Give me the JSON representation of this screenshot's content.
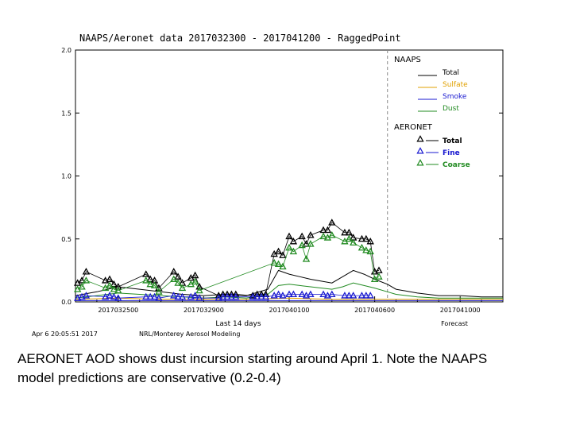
{
  "chart_data": {
    "type": "line",
    "title": "NAAPS/Aeronet data 2017032300 - 2017041200 - RaggedPoint",
    "ylim": [
      0,
      2.0
    ],
    "y_ticks": [
      "0.0",
      "0.5",
      "1.0",
      "1.5",
      "2.0"
    ],
    "xlim": [
      0,
      20
    ],
    "x_ticks": [
      {
        "x": 2,
        "label": "2017032500"
      },
      {
        "x": 6,
        "label": "2017032900"
      },
      {
        "x": 10,
        "label": "2017040100"
      },
      {
        "x": 14,
        "label": "2017040600"
      },
      {
        "x": 18,
        "label": "2017041000"
      }
    ],
    "xlabel": "Last 14 days",
    "forecast_label": "Forecast",
    "forecast_start_x": 14.6,
    "footer_left": "Apr 6 20:05:51 2017",
    "footer_center": "NRL/Monterey Aerosol Modeling",
    "legend": {
      "naaps_title": "NAAPS",
      "naaps_items": [
        {
          "label": "Total",
          "color": "#000000"
        },
        {
          "label": "Sulfate",
          "color": "#e0a000"
        },
        {
          "label": "Smoke",
          "color": "#1a1ad0"
        },
        {
          "label": "Dust",
          "color": "#228b22"
        }
      ],
      "aeronet_title": "AERONET",
      "aeronet_items": [
        {
          "label": "Total",
          "color": "#000000"
        },
        {
          "label": "Fine",
          "color": "#1a1ad0"
        },
        {
          "label": "Coarse",
          "color": "#228b22"
        }
      ]
    },
    "naaps_series": [
      {
        "name": "Total",
        "color": "#000000",
        "x": [
          0,
          1,
          2,
          3,
          4,
          5,
          6,
          7,
          8,
          9,
          9.5,
          10,
          10.5,
          11,
          12,
          12.5,
          13,
          13.5,
          14,
          14.6,
          15,
          16,
          17,
          18,
          19,
          20
        ],
        "y": [
          0.05,
          0.08,
          0.12,
          0.1,
          0.08,
          0.06,
          0.05,
          0.06,
          0.05,
          0.1,
          0.25,
          0.22,
          0.2,
          0.18,
          0.15,
          0.2,
          0.25,
          0.22,
          0.18,
          0.14,
          0.1,
          0.07,
          0.05,
          0.05,
          0.04,
          0.04
        ]
      },
      {
        "name": "Dust",
        "color": "#228b22",
        "x": [
          0,
          1,
          2,
          3,
          4,
          5,
          6,
          7,
          8,
          9,
          9.5,
          10,
          10.5,
          11,
          12,
          12.5,
          13,
          13.5,
          14,
          14.6,
          15,
          16,
          17,
          18,
          19,
          20
        ],
        "y": [
          0.03,
          0.05,
          0.07,
          0.06,
          0.05,
          0.04,
          0.03,
          0.04,
          0.03,
          0.06,
          0.13,
          0.14,
          0.13,
          0.12,
          0.1,
          0.12,
          0.15,
          0.13,
          0.11,
          0.08,
          0.06,
          0.04,
          0.03,
          0.03,
          0.03,
          0.03
        ]
      },
      {
        "name": "Sulfate",
        "color": "#e0a000",
        "x": [
          0,
          2,
          4,
          6,
          8,
          10,
          12,
          14,
          16,
          18,
          20
        ],
        "y": [
          0.02,
          0.03,
          0.02,
          0.02,
          0.02,
          0.03,
          0.02,
          0.02,
          0.02,
          0.02,
          0.02
        ]
      },
      {
        "name": "Smoke",
        "color": "#1a1ad0",
        "x": [
          0,
          4,
          8,
          12,
          16,
          20
        ],
        "y": [
          0.01,
          0.01,
          0.01,
          0.01,
          0.01,
          0.01
        ]
      }
    ],
    "aeronet_series": [
      {
        "name": "Total",
        "color": "#000000",
        "x": [
          0.1,
          0.3,
          0.5,
          1.4,
          1.6,
          1.8,
          2.0,
          3.3,
          3.5,
          3.7,
          3.9,
          4.6,
          4.8,
          5.0,
          5.4,
          5.6,
          5.8,
          6.7,
          6.9,
          7.1,
          7.3,
          7.5,
          8.3,
          8.5,
          8.7,
          8.9,
          9.3,
          9.5,
          9.7,
          10.0,
          10.2,
          10.6,
          10.8,
          11.0,
          11.6,
          11.8,
          12.0,
          12.6,
          12.8,
          13.0,
          13.4,
          13.6,
          13.8,
          14.0,
          14.2
        ],
        "y": [
          0.15,
          0.17,
          0.24,
          0.17,
          0.18,
          0.14,
          0.12,
          0.22,
          0.18,
          0.17,
          0.11,
          0.24,
          0.2,
          0.15,
          0.19,
          0.21,
          0.12,
          0.05,
          0.06,
          0.06,
          0.06,
          0.06,
          0.05,
          0.06,
          0.06,
          0.06,
          0.38,
          0.4,
          0.37,
          0.52,
          0.48,
          0.52,
          0.46,
          0.53,
          0.57,
          0.57,
          0.63,
          0.55,
          0.55,
          0.51,
          0.5,
          0.5,
          0.48,
          0.24,
          0.25
        ]
      },
      {
        "name": "Coarse",
        "color": "#228b22",
        "x": [
          0.1,
          0.3,
          0.5,
          1.4,
          1.6,
          1.8,
          2.0,
          3.3,
          3.5,
          3.7,
          3.9,
          4.6,
          4.8,
          5.0,
          5.4,
          5.6,
          5.8,
          9.3,
          9.5,
          9.7,
          10.0,
          10.2,
          10.6,
          10.8,
          11.0,
          11.6,
          11.8,
          12.0,
          12.6,
          12.8,
          13.0,
          13.4,
          13.6,
          13.8,
          14.0,
          14.2
        ],
        "y": [
          0.1,
          0.12,
          0.17,
          0.11,
          0.13,
          0.1,
          0.09,
          0.17,
          0.14,
          0.13,
          0.08,
          0.18,
          0.15,
          0.11,
          0.14,
          0.16,
          0.09,
          0.31,
          0.3,
          0.28,
          0.43,
          0.4,
          0.45,
          0.34,
          0.46,
          0.52,
          0.51,
          0.53,
          0.48,
          0.5,
          0.47,
          0.43,
          0.41,
          0.4,
          0.18,
          0.2
        ]
      },
      {
        "name": "Fine",
        "color": "#1a1ad0",
        "x": [
          0.1,
          0.3,
          0.5,
          1.4,
          1.6,
          1.8,
          2.0,
          3.3,
          3.5,
          3.7,
          3.9,
          4.6,
          4.8,
          5.0,
          5.4,
          5.6,
          5.8,
          6.7,
          6.9,
          7.1,
          7.3,
          7.5,
          8.3,
          8.5,
          8.7,
          8.9,
          9.3,
          9.5,
          9.7,
          10.0,
          10.2,
          10.6,
          10.8,
          11.0,
          11.6,
          11.8,
          12.0,
          12.6,
          12.8,
          13.0,
          13.4,
          13.6,
          13.8
        ],
        "y": [
          0.03,
          0.04,
          0.05,
          0.04,
          0.05,
          0.04,
          0.03,
          0.04,
          0.04,
          0.04,
          0.03,
          0.05,
          0.04,
          0.04,
          0.04,
          0.05,
          0.03,
          0.03,
          0.04,
          0.04,
          0.04,
          0.04,
          0.04,
          0.04,
          0.04,
          0.04,
          0.05,
          0.06,
          0.05,
          0.06,
          0.06,
          0.06,
          0.05,
          0.06,
          0.06,
          0.05,
          0.06,
          0.05,
          0.05,
          0.05,
          0.05,
          0.05,
          0.05
        ]
      }
    ]
  },
  "caption": {
    "line1": "AERONET AOD shows dust incursion starting around April 1. Note the NAAPS",
    "line2": "model predictions are conservative (0.2-0.4)"
  }
}
